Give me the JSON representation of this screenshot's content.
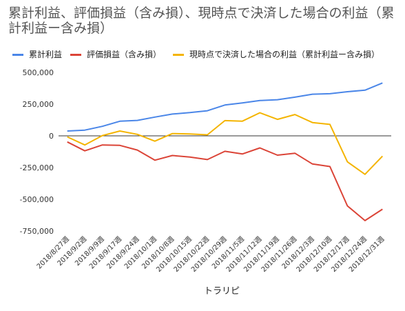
{
  "title": "累計利益、評価損益（含み損）、現時点で決済した場合の利益（累計利益ー含み損）",
  "chart_data": {
    "type": "line",
    "title": "累計利益、評価損益（含み損）、現時点で決済した場合の利益（累計利益ー含み損）",
    "xlabel": "トラリピ",
    "ylabel": "",
    "ylim": [
      -750000,
      500000
    ],
    "yticks": [
      500000,
      250000,
      0,
      -250000,
      -500000,
      -750000
    ],
    "ytick_labels": [
      "500,000",
      "250,000",
      "0",
      "-250,000",
      "-500,000",
      "-750,000"
    ],
    "grid": false,
    "legend_position": "top-left",
    "categories": [
      "2018/8/27週",
      "2018/9/2週",
      "2018/9/9週",
      "2018/9/17週",
      "2018/9/24週",
      "2018/10/1週",
      "2018/10/8週",
      "2018/10/15週",
      "2018/10/22週",
      "2018/10/29週",
      "2018/11/5週",
      "2018/11/12週",
      "2018/11/19週",
      "2018/11/26週",
      "2018/12/3週",
      "2018/12/10週",
      "2018/12/17週",
      "2018/12/24週",
      "2018/12/31週"
    ],
    "series": [
      {
        "name": "累計利益",
        "color": "#4a86e8",
        "values": [
          38000,
          45000,
          75000,
          115000,
          122000,
          148000,
          172000,
          183000,
          198000,
          243000,
          260000,
          278000,
          285000,
          305000,
          328000,
          332000,
          348000,
          360000,
          417000
        ]
      },
      {
        "name": "評価損益（含み損）",
        "color": "#db4437",
        "values": [
          -48000,
          -118000,
          -72000,
          -75000,
          -112000,
          -192000,
          -155000,
          -167000,
          -187000,
          -122000,
          -143000,
          -95000,
          -152000,
          -137000,
          -222000,
          -242000,
          -552000,
          -668000,
          -578000
        ]
      },
      {
        "name": "現時点で決済した場合の利益（累計利益ー含み損）",
        "color": "#f4b400",
        "values": [
          -8000,
          -72000,
          2000,
          38000,
          12000,
          -42000,
          18000,
          15000,
          8000,
          120000,
          116000,
          182000,
          130000,
          168000,
          105000,
          90000,
          -205000,
          -303000,
          -160000
        ]
      }
    ]
  }
}
